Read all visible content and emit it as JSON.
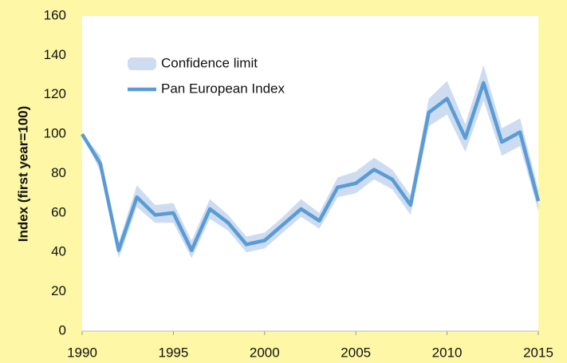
{
  "chart_data": {
    "type": "line",
    "y_label": "Index (first year=100)",
    "x": [
      1990,
      1991,
      1992,
      1993,
      1994,
      1995,
      1996,
      1997,
      1998,
      1999,
      2000,
      2001,
      2002,
      2003,
      2004,
      2005,
      2006,
      2007,
      2008,
      2009,
      2010,
      2011,
      2012,
      2013,
      2014,
      2015
    ],
    "series": [
      {
        "name": "Confidence limit",
        "color": "#cddcf0",
        "lower": [
          100,
          81,
          37,
          63,
          55,
          55,
          37,
          57,
          51,
          40,
          42,
          50,
          58,
          52,
          68,
          70,
          77,
          72,
          59,
          104,
          110,
          91,
          117,
          89,
          94,
          61
        ],
        "upper": [
          100,
          89,
          45,
          74,
          64,
          65,
          46,
          67,
          59,
          48,
          50,
          58,
          67,
          60,
          78,
          81,
          88,
          82,
          69,
          118,
          127,
          105,
          135,
          103,
          108,
          72
        ]
      },
      {
        "name": "Pan European Index",
        "color": "#5b9bd5",
        "values": [
          100,
          85,
          41,
          68,
          59,
          60,
          41,
          62,
          55,
          44,
          46,
          54,
          62,
          56,
          73,
          75,
          82,
          77,
          64,
          111,
          118,
          98,
          126,
          96,
          101,
          66
        ]
      }
    ],
    "xlim": [
      1990,
      2015
    ],
    "xticks": [
      1990,
      1995,
      2000,
      2005,
      2010,
      2015
    ],
    "ylim": [
      0,
      160
    ],
    "yticks": [
      0,
      20,
      40,
      60,
      80,
      100,
      120,
      140,
      160
    ],
    "legend": "top-left",
    "grid": false
  }
}
